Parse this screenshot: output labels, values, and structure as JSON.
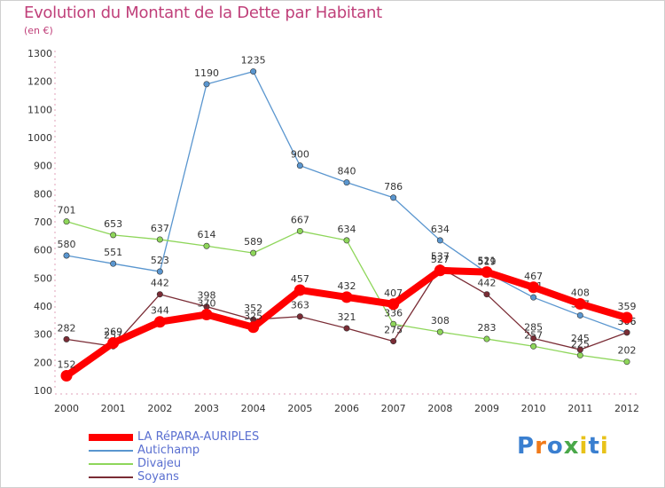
{
  "title": "Evolution du Montant de la Dette par Habitant",
  "subtitle": "(en €)",
  "logo": {
    "text": "Proxiti",
    "colors": [
      "#3a7fd0",
      "#f07a1a",
      "#3a7fd0",
      "#4aa84a",
      "#e8c21a",
      "#3a7fd0",
      "#e8c21a"
    ]
  },
  "chart_data": {
    "type": "line",
    "x": [
      "2000",
      "2001",
      "2002",
      "2003",
      "2004",
      "2005",
      "2006",
      "2007",
      "2008",
      "2009",
      "2010",
      "2011",
      "2012"
    ],
    "ylim": [
      100,
      1300
    ],
    "yticks": [
      100,
      200,
      300,
      400,
      500,
      600,
      700,
      800,
      900,
      1000,
      1100,
      1200,
      1300
    ],
    "grid": false,
    "legend": "bottom-left",
    "series": [
      {
        "name": "Autichamp",
        "color": "#5a96cf",
        "values": [
          580,
          551,
          523,
          1190,
          1235,
          900,
          840,
          786,
          634,
          519,
          431,
          367,
          306
        ],
        "labels": [
          "580",
          "551",
          "523",
          "1190",
          "1235",
          "900",
          "840",
          "786",
          "634",
          "519",
          "431",
          "367",
          "306"
        ]
      },
      {
        "name": "Divajeu",
        "color": "#8ed65a",
        "values": [
          701,
          653,
          637,
          614,
          589,
          667,
          634,
          336,
          308,
          283,
          257,
          225,
          202
        ],
        "labels": [
          "701",
          "653",
          "637",
          "614",
          "589",
          "667",
          "634",
          "336",
          "308",
          "283",
          "257",
          "225",
          "202"
        ]
      },
      {
        "name": "Soyans",
        "color": "#7a2c35",
        "values": [
          282,
          257,
          442,
          398,
          352,
          363,
          321,
          275,
          537,
          442,
          285,
          245,
          306
        ],
        "labels": [
          "282",
          "257",
          "442",
          "398",
          "352",
          "363",
          "321",
          "275",
          "537",
          "442",
          "285",
          "245",
          "306"
        ]
      },
      {
        "name": "LA RéPARA-AURIPLES",
        "color": "#ff0000",
        "values": [
          152,
          269,
          344,
          370,
          325,
          457,
          432,
          407,
          527,
          521,
          467,
          408,
          359
        ],
        "labels": [
          "152",
          "269",
          "344",
          "370",
          "325",
          "457",
          "432",
          "407",
          "527",
          "521",
          "467",
          "408",
          "359"
        ]
      }
    ]
  }
}
